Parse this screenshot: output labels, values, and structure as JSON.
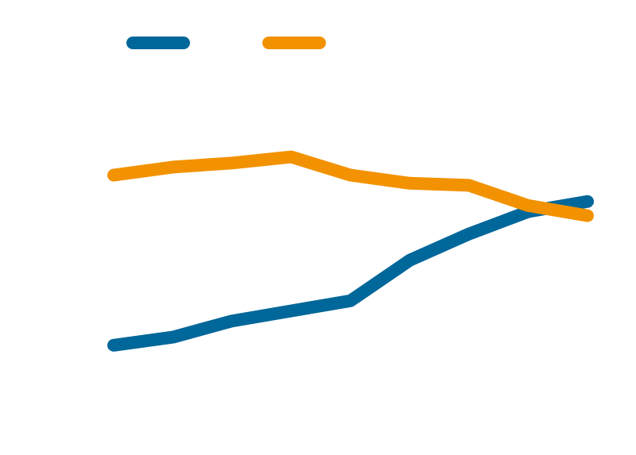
{
  "chart_data": {
    "type": "line",
    "title": "",
    "xlabel": "",
    "ylabel": "",
    "x": [
      1,
      2,
      3,
      4,
      5,
      6,
      7,
      8,
      9
    ],
    "xlim": [
      1,
      9
    ],
    "ylim": [
      0,
      100
    ],
    "grid": false,
    "legend": "top-left",
    "series": [
      {
        "color": "#00679a",
        "values": [
          22,
          24,
          28,
          30.5,
          33,
          43,
          49.5,
          55,
          57.5
        ]
      },
      {
        "color": "#f29200",
        "values": [
          64,
          66,
          67,
          68.5,
          64,
          62,
          61.5,
          56.5,
          54
        ]
      }
    ]
  }
}
